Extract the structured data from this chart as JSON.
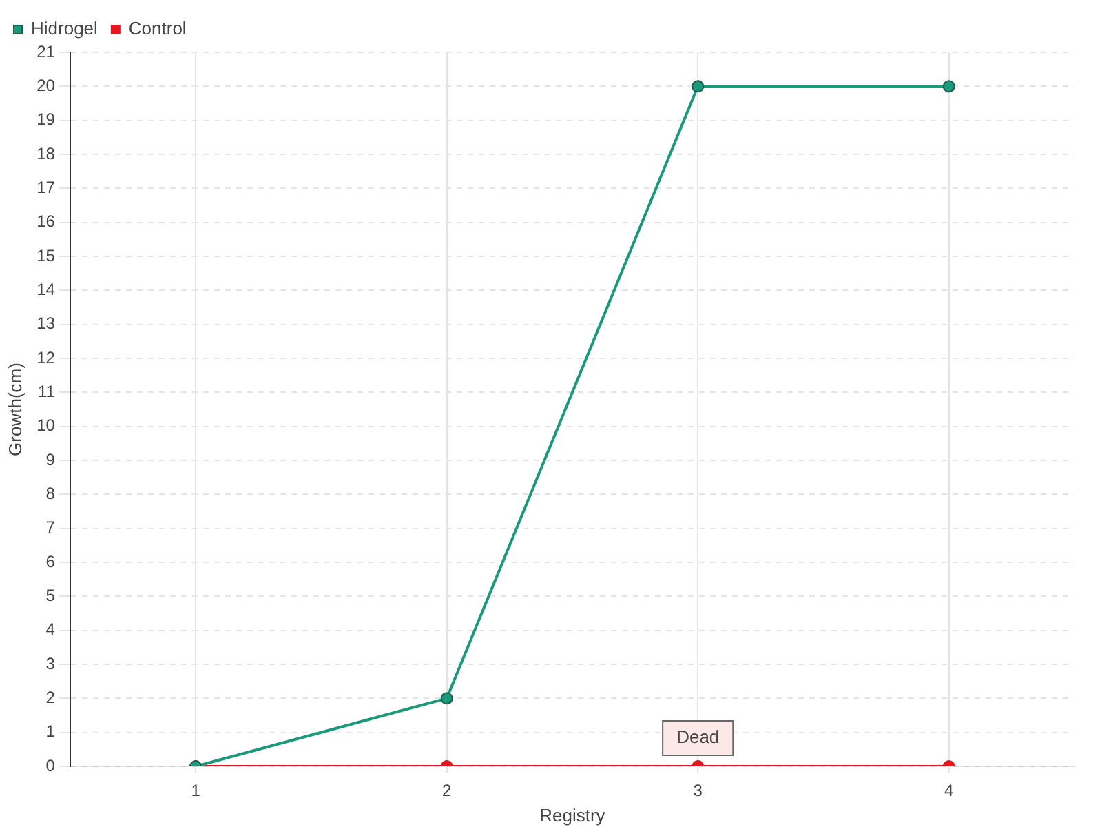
{
  "chart_data": {
    "type": "line",
    "xlabel": "Registry",
    "ylabel": "Growth(cm)",
    "categories": [
      "1",
      "2",
      "3",
      "4"
    ],
    "series": [
      {
        "name": "Hidrogel",
        "color": "#1a9a7a",
        "values": [
          0,
          2,
          20,
          20
        ]
      },
      {
        "name": "Control",
        "color": "#e8141e",
        "values": [
          0,
          0,
          0,
          0
        ]
      }
    ],
    "ylim": [
      0,
      21
    ],
    "yticks": [
      0,
      1,
      2,
      3,
      4,
      5,
      6,
      7,
      8,
      9,
      10,
      11,
      12,
      13,
      14,
      15,
      16,
      17,
      18,
      19,
      20,
      21
    ],
    "grid": true,
    "legend": "top left",
    "marker": "circle",
    "line_style": "solid",
    "annotations": [
      {
        "text": "Dead",
        "x": "3",
        "y": 0
      }
    ]
  }
}
